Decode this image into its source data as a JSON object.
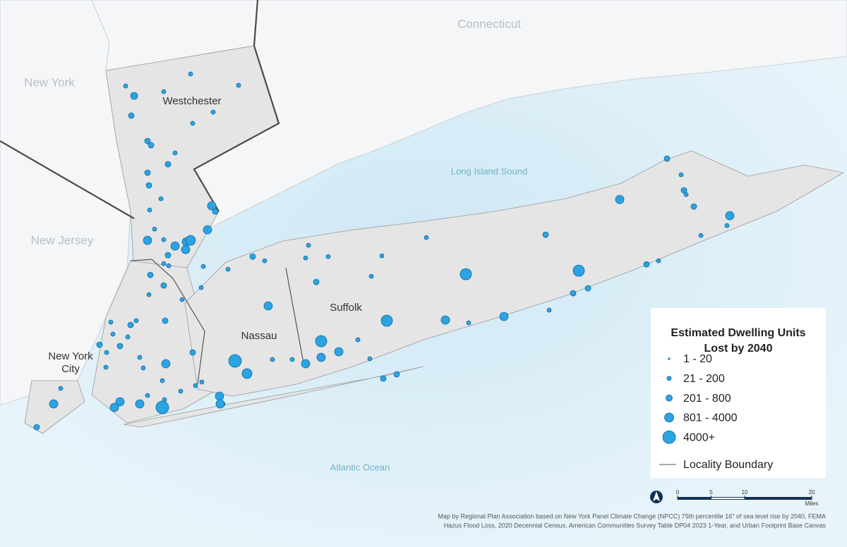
{
  "map": {
    "labels": {
      "new_york": "New York",
      "connecticut": "Connecticut",
      "new_jersey": "New Jersey",
      "westchester": "Westchester",
      "long_island_sound": "Long Island Sound",
      "suffolk": "Suffolk",
      "nassau": "Nassau",
      "new_york_city": "New York City",
      "atlantic_ocean": "Atlantic Ocean"
    }
  },
  "legend": {
    "title": "Estimated Dwelling Units Lost by 2040",
    "items": [
      "1 - 20",
      "21 - 200",
      "201 - 800",
      "801 - 4000",
      "4000+"
    ],
    "boundary": "Locality Boundary"
  },
  "scale_bar": {
    "ticks": [
      0,
      5,
      10,
      20
    ],
    "unit": "Miles"
  },
  "credit": [
    "Map by Regional Plan Association based on New York Panel Climate Change (NPCC) 75th percentile 16\" of sea level rise by 2040, FEMA",
    "Hazus Flood Loss, 2020 Decennial Census, American Communities Survey Table DP04 2023 1-Year, and Urban Footprint Base Canvas"
  ]
}
